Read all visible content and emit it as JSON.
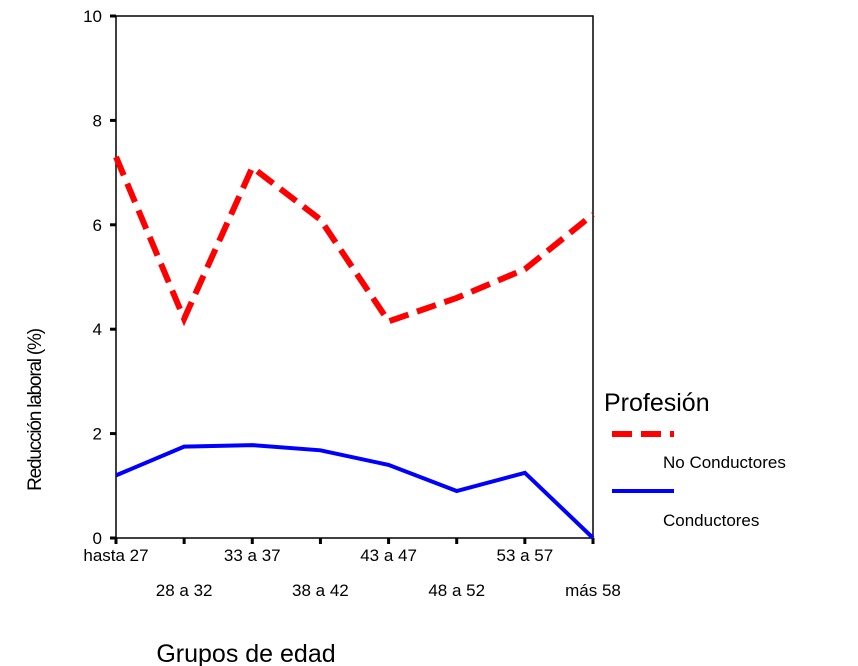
{
  "chart_data": {
    "type": "line",
    "xlabel": "Grupos de edad",
    "ylabel": "Reducción laboral (%)",
    "ylim": [
      0,
      10
    ],
    "yticks": [
      0,
      2,
      4,
      6,
      8,
      10
    ],
    "categories": [
      "hasta 27",
      "28 a 32",
      "33 a 37",
      "38 a 42",
      "43 a 47",
      "48 a 52",
      "53 a 57",
      "más 58"
    ],
    "legend": {
      "title": "Profesión",
      "placement": "right"
    },
    "series": [
      {
        "name": "No Conductores",
        "color": "#ff0000",
        "style": "dashed",
        "values": [
          7.3,
          4.2,
          7.1,
          6.1,
          4.15,
          4.6,
          5.15,
          6.2
        ]
      },
      {
        "name": "Conductores",
        "color": "#0000ff",
        "style": "solid",
        "values": [
          1.2,
          1.75,
          1.78,
          1.68,
          1.4,
          0.9,
          1.25,
          0.0
        ]
      }
    ]
  }
}
